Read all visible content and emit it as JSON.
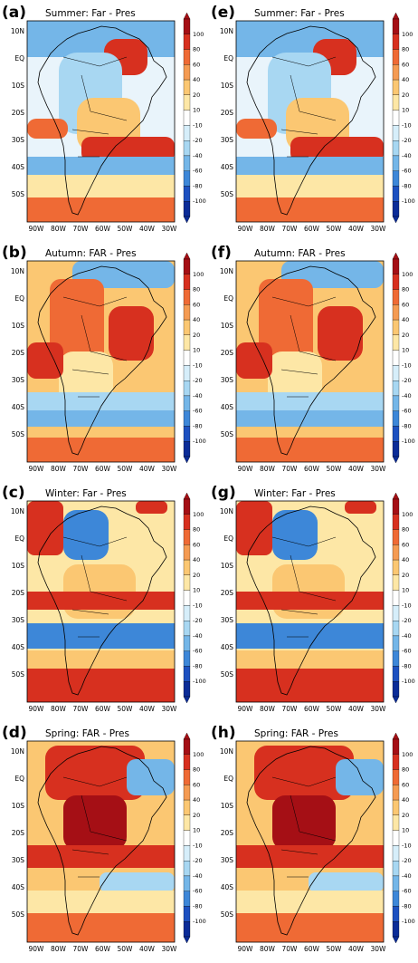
{
  "panels": [
    {
      "id": "(a)",
      "title": "Summer: Far - Pres",
      "season": "summer"
    },
    {
      "id": "(e)",
      "title": "Summer: Far - Pres",
      "season": "summer"
    },
    {
      "id": "(b)",
      "title": "Autumn: FAR - Pres",
      "season": "autumn"
    },
    {
      "id": "(f)",
      "title": "Autumn: FAR - Pres",
      "season": "autumn"
    },
    {
      "id": "(c)",
      "title": "Winter: Far - Pres",
      "season": "winter"
    },
    {
      "id": "(g)",
      "title": "Winter: Far - Pres",
      "season": "winter"
    },
    {
      "id": "(d)",
      "title": "Spring: FAR - Pres",
      "season": "spring"
    },
    {
      "id": "(h)",
      "title": "Spring: FAR - Pres",
      "season": "spring"
    }
  ],
  "lat_ticks": [
    "10N",
    "EQ",
    "10S",
    "20S",
    "30S",
    "40S",
    "50S"
  ],
  "lon_ticks": [
    "90W",
    "80W",
    "70W",
    "60W",
    "50W",
    "40W",
    "30W"
  ],
  "colorbar": {
    "labels": [
      "100",
      "80",
      "60",
      "40",
      "20",
      "10",
      "-10",
      "-20",
      "-40",
      "-60",
      "-80",
      "-100"
    ],
    "colors": [
      "#a50f15",
      "#d7301f",
      "#ef6a35",
      "#f59b52",
      "#fbc772",
      "#fde7a6",
      "#ffffff",
      "#d6eefa",
      "#a8d7f2",
      "#74b6e8",
      "#3d87d8",
      "#1d50c0",
      "#0b2c98"
    ]
  },
  "colors": {
    "land_outline": "#000000",
    "ocean_base": "#cfe8f7"
  }
}
